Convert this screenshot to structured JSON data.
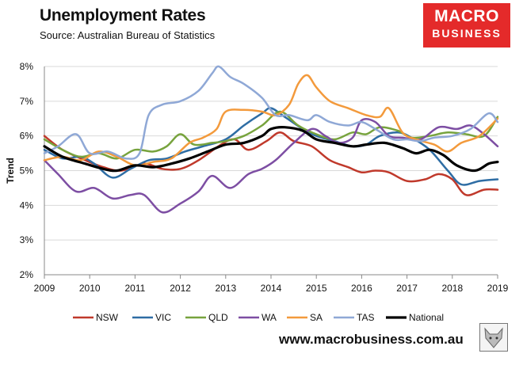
{
  "header": {
    "title": "Unemployment Rates",
    "source": "Source: Australian Bureau of Statistics"
  },
  "logo": {
    "line1": "MACRO",
    "line2": "BUSINESS"
  },
  "footer": {
    "website": "www.macrobusiness.com.au"
  },
  "chart_data": {
    "type": "line",
    "title": "Unemployment Rates",
    "xlabel": "",
    "ylabel": "Trend",
    "xlim": [
      2009,
      2019
    ],
    "ylim": [
      2,
      8
    ],
    "x_ticks": [
      2009,
      2010,
      2011,
      2012,
      2013,
      2014,
      2015,
      2016,
      2017,
      2018,
      2019
    ],
    "y_ticks": [
      2,
      3,
      4,
      5,
      6,
      7,
      8
    ],
    "y_tick_labels": [
      "2%",
      "3%",
      "4%",
      "5%",
      "6%",
      "7%",
      "8%"
    ],
    "grid": true,
    "legend": "bottom",
    "series": [
      {
        "name": "NSW",
        "color": "#c0392b",
        "width": 2.5,
        "x": [
          2009,
          2009.4,
          2009.9,
          2010.3,
          2010.7,
          2011.2,
          2011.6,
          2012.0,
          2012.4,
          2012.9,
          2013.2,
          2013.5,
          2013.9,
          2014.2,
          2014.5,
          2014.9,
          2015.3,
          2015.7,
          2016.0,
          2016.3,
          2016.6,
          2017.0,
          2017.4,
          2017.7,
          2018.0,
          2018.3,
          2018.7,
          2019.0
        ],
        "values": [
          6.0,
          5.6,
          5.3,
          5.1,
          5.0,
          5.2,
          5.05,
          5.05,
          5.3,
          5.75,
          5.9,
          5.6,
          5.85,
          6.1,
          5.85,
          5.7,
          5.3,
          5.1,
          4.95,
          5.0,
          4.95,
          4.7,
          4.75,
          4.9,
          4.75,
          4.3,
          4.45,
          4.45
        ]
      },
      {
        "name": "VIC",
        "color": "#2e6da4",
        "width": 2.5,
        "x": [
          2009,
          2009.4,
          2009.8,
          2010.1,
          2010.5,
          2010.9,
          2011.3,
          2011.7,
          2012.1,
          2012.5,
          2013.0,
          2013.4,
          2013.8,
          2014.0,
          2014.3,
          2014.7,
          2015.0,
          2015.4,
          2015.8,
          2016.1,
          2016.4,
          2016.8,
          2017.1,
          2017.5,
          2017.9,
          2018.2,
          2018.6,
          2019.0
        ],
        "values": [
          5.6,
          5.35,
          5.4,
          5.2,
          4.8,
          5.05,
          5.3,
          5.35,
          5.55,
          5.7,
          5.9,
          6.3,
          6.65,
          6.8,
          6.55,
          6.2,
          6.0,
          5.85,
          5.7,
          5.75,
          6.0,
          6.1,
          5.95,
          5.6,
          5.0,
          4.6,
          4.7,
          4.75
        ]
      },
      {
        "name": "QLD",
        "color": "#77a33d",
        "width": 2.5,
        "x": [
          2009,
          2009.4,
          2009.8,
          2010.2,
          2010.6,
          2011.0,
          2011.4,
          2011.7,
          2012.0,
          2012.3,
          2012.7,
          2013.0,
          2013.4,
          2013.8,
          2014.2,
          2014.6,
          2015.0,
          2015.4,
          2015.8,
          2016.1,
          2016.4,
          2016.8,
          2017.1,
          2017.5,
          2017.9,
          2018.3,
          2018.7,
          2019.0
        ],
        "values": [
          5.9,
          5.6,
          5.4,
          5.5,
          5.35,
          5.6,
          5.55,
          5.7,
          6.05,
          5.75,
          5.8,
          5.85,
          6.0,
          6.3,
          6.7,
          6.3,
          6.05,
          5.9,
          6.1,
          6.05,
          6.25,
          6.15,
          5.95,
          6.0,
          6.1,
          6.05,
          6.0,
          6.55
        ]
      },
      {
        "name": "WA",
        "color": "#7d4ea3",
        "width": 2.5,
        "x": [
          2009,
          2009.3,
          2009.7,
          2010.1,
          2010.5,
          2010.9,
          2011.2,
          2011.6,
          2012.0,
          2012.4,
          2012.7,
          2013.1,
          2013.5,
          2013.8,
          2014.1,
          2014.5,
          2014.9,
          2015.2,
          2015.5,
          2015.8,
          2016.0,
          2016.3,
          2016.6,
          2016.9,
          2017.3,
          2017.7,
          2018.1,
          2018.4,
          2018.7,
          2019.0
        ],
        "values": [
          5.3,
          4.9,
          4.4,
          4.5,
          4.2,
          4.3,
          4.3,
          3.8,
          4.05,
          4.4,
          4.85,
          4.5,
          4.9,
          5.05,
          5.3,
          5.8,
          6.2,
          6.0,
          5.8,
          5.95,
          6.45,
          6.4,
          6.0,
          5.95,
          5.9,
          6.25,
          6.2,
          6.3,
          6.05,
          5.7
        ]
      },
      {
        "name": "SA",
        "color": "#f39a3c",
        "width": 2.5,
        "x": [
          2009,
          2009.4,
          2009.8,
          2010.2,
          2010.6,
          2011.0,
          2011.4,
          2011.8,
          2012.2,
          2012.5,
          2012.8,
          2013.0,
          2013.4,
          2013.8,
          2014.1,
          2014.4,
          2014.6,
          2014.8,
          2015.0,
          2015.3,
          2015.7,
          2016.1,
          2016.4,
          2016.6,
          2016.9,
          2017.2,
          2017.6,
          2017.9,
          2018.2,
          2018.6,
          2019.0
        ],
        "values": [
          5.3,
          5.4,
          5.3,
          5.55,
          5.4,
          5.15,
          5.25,
          5.35,
          5.8,
          5.95,
          6.2,
          6.7,
          6.75,
          6.7,
          6.6,
          6.9,
          7.5,
          7.75,
          7.4,
          7.0,
          6.8,
          6.6,
          6.55,
          6.8,
          6.1,
          5.9,
          5.75,
          5.55,
          5.8,
          6.0,
          6.5
        ]
      },
      {
        "name": "TAS",
        "color": "#8fa8d6",
        "width": 2.5,
        "x": [
          2009,
          2009.3,
          2009.7,
          2010.0,
          2010.4,
          2010.8,
          2011.1,
          2011.3,
          2011.6,
          2012.0,
          2012.4,
          2012.7,
          2012.85,
          2013.1,
          2013.4,
          2013.8,
          2014.1,
          2014.4,
          2014.8,
          2015.0,
          2015.3,
          2015.7,
          2016.0,
          2016.3,
          2016.7,
          2017.0,
          2017.3,
          2017.6,
          2018.0,
          2018.4,
          2018.8,
          2019.0
        ],
        "values": [
          5.5,
          5.7,
          6.05,
          5.5,
          5.55,
          5.35,
          5.5,
          6.6,
          6.9,
          7.0,
          7.3,
          7.8,
          8.0,
          7.7,
          7.5,
          7.1,
          6.6,
          6.6,
          6.45,
          6.6,
          6.4,
          6.3,
          6.4,
          6.2,
          5.9,
          5.9,
          5.85,
          5.95,
          6.0,
          6.2,
          6.65,
          6.4
        ]
      },
      {
        "name": "National",
        "color": "#000000",
        "width": 3.2,
        "x": [
          2009,
          2009.4,
          2009.9,
          2010.3,
          2010.6,
          2011.0,
          2011.4,
          2011.8,
          2012.2,
          2012.6,
          2013.0,
          2013.4,
          2013.8,
          2014.0,
          2014.3,
          2014.7,
          2015.0,
          2015.4,
          2015.8,
          2016.1,
          2016.5,
          2016.9,
          2017.2,
          2017.5,
          2017.8,
          2018.1,
          2018.5,
          2018.8,
          2019.0
        ],
        "values": [
          5.7,
          5.4,
          5.2,
          5.05,
          5.0,
          5.15,
          5.1,
          5.2,
          5.35,
          5.55,
          5.75,
          5.8,
          6.0,
          6.2,
          6.25,
          6.15,
          5.9,
          5.8,
          5.7,
          5.75,
          5.8,
          5.65,
          5.5,
          5.6,
          5.45,
          5.15,
          5.0,
          5.2,
          5.25
        ]
      }
    ]
  }
}
